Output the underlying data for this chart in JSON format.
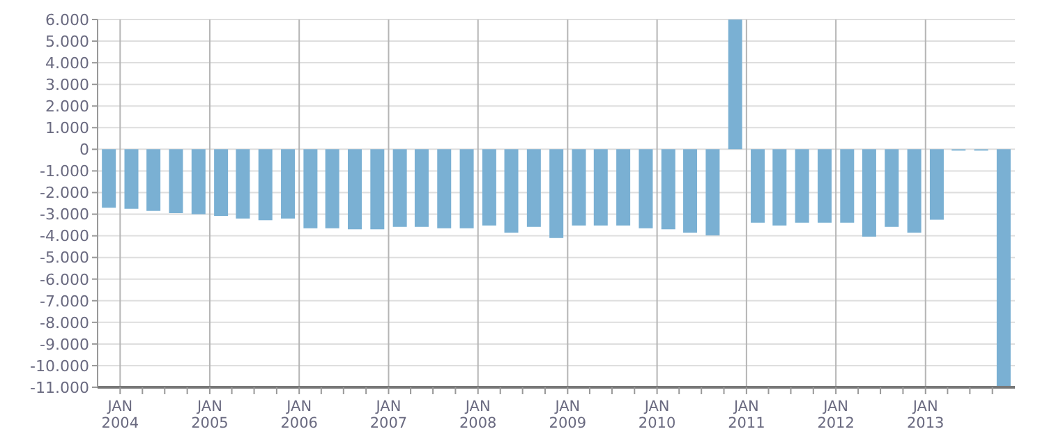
{
  "chart_data": {
    "type": "bar",
    "x": [
      "2003-11-15",
      "2004-02-15",
      "2004-05-15",
      "2004-08-15",
      "2004-11-15",
      "2005-02-15",
      "2005-05-15",
      "2005-08-15",
      "2005-11-15",
      "2006-02-15",
      "2006-05-15",
      "2006-08-15",
      "2006-11-15",
      "2007-02-15",
      "2007-05-15",
      "2007-08-15",
      "2007-11-15",
      "2008-02-15",
      "2008-05-15",
      "2008-08-15",
      "2008-11-15",
      "2009-02-15",
      "2009-05-15",
      "2009-08-15",
      "2009-11-15",
      "2010-02-15",
      "2010-05-15",
      "2010-08-15",
      "2010-11-15",
      "2011-02-15",
      "2011-05-15",
      "2011-08-15",
      "2011-11-15",
      "2012-02-15",
      "2012-05-15",
      "2012-08-15",
      "2012-11-15",
      "2013-02-15",
      "2013-05-15",
      "2013-08-15",
      "2013-11-15"
    ],
    "values": [
      -2700,
      -2750,
      -2850,
      -2950,
      -3000,
      -3080,
      -3200,
      -3280,
      -3200,
      -3650,
      -3650,
      -3700,
      -3700,
      -3590,
      -3590,
      -3650,
      -3650,
      -3520,
      -3850,
      -3590,
      -4100,
      -3520,
      -3520,
      -3520,
      -3650,
      -3700,
      -3850,
      -3980,
      6000,
      -3390,
      -3520,
      -3390,
      -3390,
      -3390,
      -4040,
      -3590,
      -3850,
      -3260,
      -60,
      -60,
      -11000
    ],
    "color": "#7ab0d3",
    "xlim": [
      "2003-10-01",
      "2014-01-01"
    ],
    "xticks": [
      {
        "value": "2004-01-01",
        "label": "JAN 2004"
      },
      {
        "value": "2004-04-01",
        "label": null
      },
      {
        "value": "2004-07-01",
        "label": null
      },
      {
        "value": "2004-10-01",
        "label": null
      },
      {
        "value": "2005-01-01",
        "label": "JAN 2005"
      },
      {
        "value": "2005-04-01",
        "label": null
      },
      {
        "value": "2005-07-01",
        "label": null
      },
      {
        "value": "2005-10-01",
        "label": null
      },
      {
        "value": "2006-01-01",
        "label": "JAN 2006"
      },
      {
        "value": "2006-04-01",
        "label": null
      },
      {
        "value": "2006-07-01",
        "label": null
      },
      {
        "value": "2006-10-01",
        "label": null
      },
      {
        "value": "2007-01-01",
        "label": "JAN 2007"
      },
      {
        "value": "2007-04-01",
        "label": null
      },
      {
        "value": "2007-07-01",
        "label": null
      },
      {
        "value": "2007-10-01",
        "label": null
      },
      {
        "value": "2008-01-01",
        "label": "JAN 2008"
      },
      {
        "value": "2008-04-01",
        "label": null
      },
      {
        "value": "2008-07-01",
        "label": null
      },
      {
        "value": "2008-10-01",
        "label": null
      },
      {
        "value": "2009-01-01",
        "label": "JAN 2009"
      },
      {
        "value": "2009-04-01",
        "label": null
      },
      {
        "value": "2009-07-01",
        "label": null
      },
      {
        "value": "2009-10-01",
        "label": null
      },
      {
        "value": "2010-01-01",
        "label": "JAN 2010"
      },
      {
        "value": "2010-04-01",
        "label": null
      },
      {
        "value": "2010-07-01",
        "label": null
      },
      {
        "value": "2010-10-01",
        "label": null
      },
      {
        "value": "2011-01-01",
        "label": "JAN 2011"
      },
      {
        "value": "2011-04-01",
        "label": null
      },
      {
        "value": "2011-07-01",
        "label": null
      },
      {
        "value": "2011-10-01",
        "label": null
      },
      {
        "value": "2012-01-01",
        "label": "JAN 2012"
      },
      {
        "value": "2012-04-01",
        "label": null
      },
      {
        "value": "2012-07-01",
        "label": null
      },
      {
        "value": "2012-10-01",
        "label": null
      },
      {
        "value": "2013-01-01",
        "label": "JAN 2013"
      },
      {
        "value": "2013-04-01",
        "label": null
      },
      {
        "value": "2013-07-01",
        "label": null
      },
      {
        "value": "2013-10-01",
        "label": null
      }
    ],
    "ylim": [
      -11000,
      6000
    ],
    "yticks": [
      {
        "value": 6000,
        "label": "6.000"
      },
      {
        "value": 5000,
        "label": "5.000"
      },
      {
        "value": 4000,
        "label": "4.000"
      },
      {
        "value": 3000,
        "label": "3.000"
      },
      {
        "value": 2000,
        "label": "2.000"
      },
      {
        "value": 1000,
        "label": "1.000"
      },
      {
        "value": 0,
        "label": "0"
      },
      {
        "value": -1000,
        "label": "-1.000"
      },
      {
        "value": -2000,
        "label": "-2.000"
      },
      {
        "value": -3000,
        "label": "-3.000"
      },
      {
        "value": -4000,
        "label": "-4.000"
      },
      {
        "value": -5000,
        "label": "-5.000"
      },
      {
        "value": -6000,
        "label": "-6.000"
      },
      {
        "value": -7000,
        "label": "-7.000"
      },
      {
        "value": -8000,
        "label": "-8.000"
      },
      {
        "value": -9000,
        "label": "-9.000"
      },
      {
        "value": -10000,
        "label": "-10.000"
      },
      {
        "value": -11000,
        "label": "-11.000"
      }
    ],
    "grid": true
  }
}
